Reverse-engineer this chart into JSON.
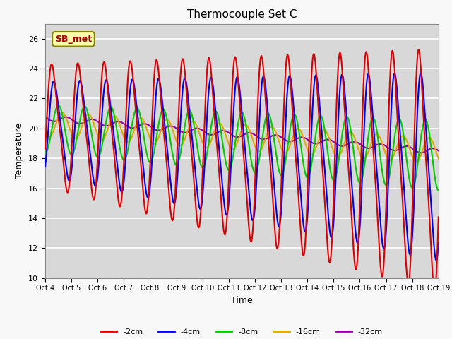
{
  "title": "Thermocouple Set C",
  "xlabel": "Time",
  "ylabel": "Temperature",
  "ylim": [
    10,
    27
  ],
  "xlim": [
    0,
    15
  ],
  "annotation": "SB_met",
  "series_labels": [
    "-2cm",
    "-4cm",
    "-8cm",
    "-16cm",
    "-32cm"
  ],
  "series_colors": [
    "#dd0000",
    "#0000ee",
    "#00cc00",
    "#ddaa00",
    "#9900aa"
  ],
  "xtick_labels": [
    "Oct 4",
    "Oct 5",
    "Oct 6",
    "Oct 7",
    "Oct 8",
    "Oct 9",
    "Oct 10",
    "Oct 11",
    "Oct 12",
    "Oct 13",
    "Oct 14",
    "Oct 15",
    "Oct 16",
    "Oct 17",
    "Oct 18",
    "Oct 19"
  ],
  "plot_bg_color": "#d8d8d8",
  "fig_bg_color": "#f8f8f8",
  "grid_color": "#ffffff",
  "annotation_facecolor": "#ffffaa",
  "annotation_edgecolor": "#888800",
  "annotation_textcolor": "#aa0000"
}
